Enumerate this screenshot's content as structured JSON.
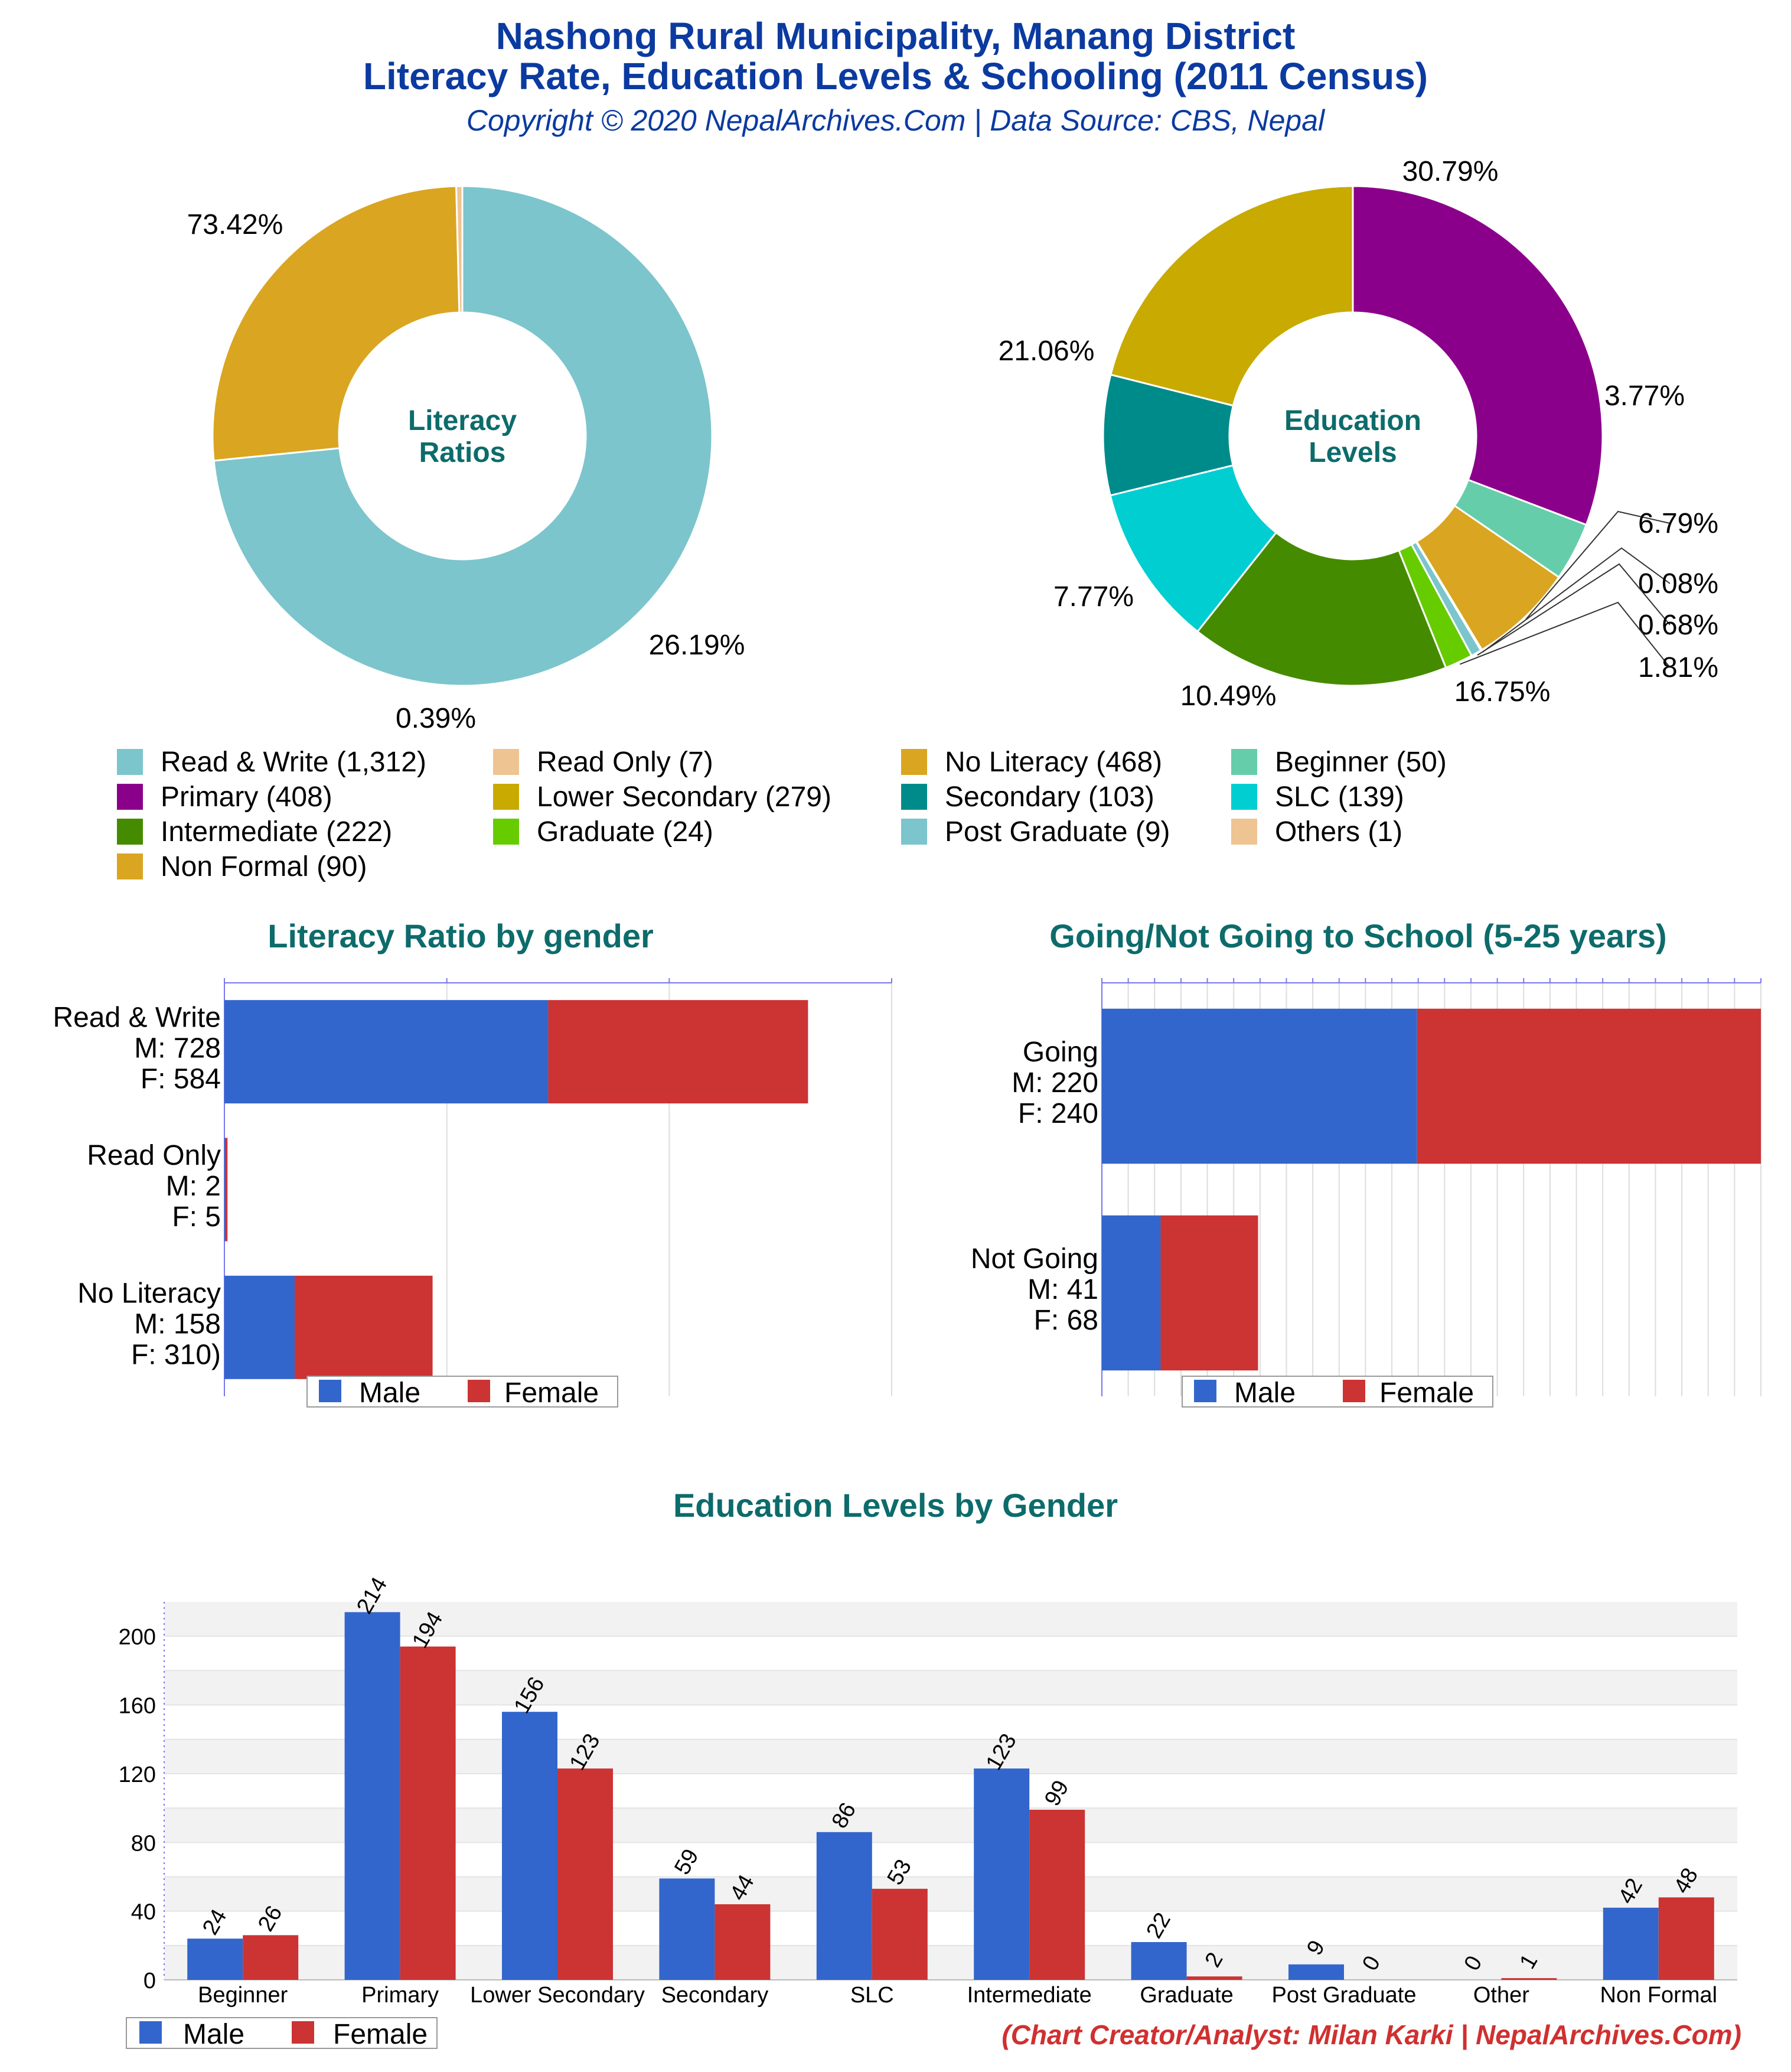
{
  "header": {
    "title_line1": "Nashong Rural Municipality, Manang District",
    "title_line2": "Literacy Rate, Education Levels & Schooling (2011 Census)",
    "copyright": "Copyright © 2020 NepalArchives.Com | Data Source: CBS, Nepal"
  },
  "footer": {
    "credit": "(Chart Creator/Analyst: Milan Karki | NepalArchives.Com)"
  },
  "chart_data": [
    {
      "type": "pie",
      "center_label": [
        "Literacy",
        "Ratios"
      ],
      "slices": [
        {
          "label": "Read & Write",
          "value": 1312,
          "percent": "73.42%",
          "color": "#7cc5cc"
        },
        {
          "label": "No Literacy",
          "value": 468,
          "percent": "26.19%",
          "color": "#daa520"
        },
        {
          "label": "Read Only",
          "value": 7,
          "percent": "0.39%",
          "color": "#eec492"
        }
      ]
    },
    {
      "type": "pie",
      "center_label": [
        "Education",
        "Levels"
      ],
      "slices": [
        {
          "label": "Primary",
          "value": 408,
          "percent": "30.79%",
          "color": "#8b008b"
        },
        {
          "label": "Beginner",
          "value": 50,
          "percent": "3.77%",
          "color": "#66cdaa"
        },
        {
          "label": "Non Formal",
          "value": 90,
          "percent": "6.79%",
          "color": "#daa520"
        },
        {
          "label": "Others",
          "value": 1,
          "percent": "0.08%",
          "color": "#eec492"
        },
        {
          "label": "Post Graduate",
          "value": 9,
          "percent": "0.68%",
          "color": "#7cc5cc"
        },
        {
          "label": "Graduate",
          "value": 24,
          "percent": "1.81%",
          "color": "#66cc00"
        },
        {
          "label": "Intermediate",
          "value": 222,
          "percent": "16.75%",
          "color": "#458b00"
        },
        {
          "label": "SLC",
          "value": 139,
          "percent": "10.49%",
          "color": "#00ced1"
        },
        {
          "label": "Secondary",
          "value": 103,
          "percent": "7.77%",
          "color": "#008b8b"
        },
        {
          "label": "Lower Secondary",
          "value": 279,
          "percent": "21.06%",
          "color": "#c8aa00"
        }
      ]
    },
    {
      "type": "legend",
      "entries": [
        {
          "text": "Read & Write (1,312)",
          "color": "#7cc5cc"
        },
        {
          "text": "Read Only (7)",
          "color": "#eec492"
        },
        {
          "text": "No Literacy (468)",
          "color": "#daa520"
        },
        {
          "text": "Beginner (50)",
          "color": "#66cdaa"
        },
        {
          "text": "Primary (408)",
          "color": "#8b008b"
        },
        {
          "text": "Lower Secondary (279)",
          "color": "#c8aa00"
        },
        {
          "text": "Secondary (103)",
          "color": "#008b8b"
        },
        {
          "text": "SLC (139)",
          "color": "#00ced1"
        },
        {
          "text": "Intermediate (222)",
          "color": "#458b00"
        },
        {
          "text": "Graduate (24)",
          "color": "#66cc00"
        },
        {
          "text": "Post Graduate (9)",
          "color": "#7cc5cc"
        },
        {
          "text": "Others (1)",
          "color": "#eec492"
        },
        {
          "text": "Non Formal (90)",
          "color": "#daa520"
        }
      ]
    },
    {
      "type": "bar",
      "orientation": "horizontal",
      "stacked": true,
      "title": "Literacy Ratio by gender",
      "categories": [
        [
          "Read & Write",
          "M: 728",
          "F: 584"
        ],
        [
          "Read Only",
          "M: 2",
          "F: 5"
        ],
        [
          "No Literacy",
          "M: 158",
          "F: 310)"
        ]
      ],
      "series": [
        {
          "name": "Male",
          "values": [
            728,
            2,
            158
          ],
          "color": "#3366cc"
        },
        {
          "name": "Female",
          "values": [
            584,
            5,
            310
          ],
          "color": "#cc3333"
        }
      ],
      "xlim": [
        0,
        1500
      ],
      "legend": "bottom"
    },
    {
      "type": "bar",
      "orientation": "horizontal",
      "stacked": true,
      "title": "Going/Not Going to School (5-25 years)",
      "categories": [
        [
          "Going",
          "M: 220",
          "F: 240"
        ],
        [
          "Not Going",
          "M: 41",
          "F: 68"
        ]
      ],
      "series": [
        {
          "name": "Male",
          "values": [
            220,
            41
          ],
          "color": "#3366cc"
        },
        {
          "name": "Female",
          "values": [
            240,
            68
          ],
          "color": "#cc3333"
        }
      ],
      "xlim": [
        0,
        460
      ],
      "legend": "bottom"
    },
    {
      "type": "bar",
      "title": "Education Levels by Gender",
      "categories": [
        "Beginner",
        "Primary",
        "Lower Secondary",
        "Secondary",
        "SLC",
        "Intermediate",
        "Graduate",
        "Post Graduate",
        "Other",
        "Non Formal"
      ],
      "series": [
        {
          "name": "Male",
          "values": [
            24,
            214,
            156,
            59,
            86,
            123,
            22,
            9,
            0,
            42
          ],
          "color": "#3366cc"
        },
        {
          "name": "Female",
          "values": [
            26,
            194,
            123,
            44,
            53,
            99,
            2,
            0,
            1,
            48
          ],
          "color": "#cc3333"
        }
      ],
      "yticks": [
        0,
        40,
        80,
        120,
        160,
        200
      ],
      "ylim": [
        0,
        220
      ],
      "legend": "bottom-left"
    }
  ]
}
